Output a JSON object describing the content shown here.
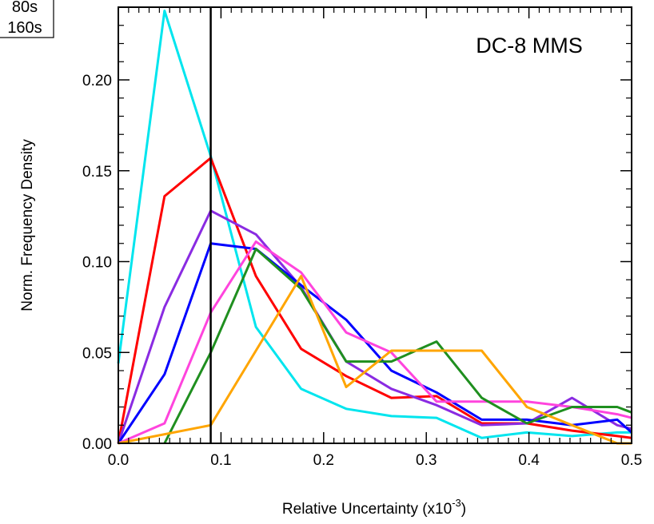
{
  "legend_box": {
    "items": [
      "80s",
      "160s"
    ]
  },
  "chart_data": {
    "type": "line",
    "title": "DC-8 MMS",
    "xlabel": "Relative Uncertainty (x10",
    "xlabel_exponent": "-3",
    "xlabel_close": ")",
    "ylabel": "Norm. Frequency Density",
    "xlim": [
      0,
      0.5
    ],
    "ylim": [
      0,
      0.24
    ],
    "xticks": [
      "0.0",
      "0.1",
      "0.2",
      "0.3",
      "0.4",
      "0.5"
    ],
    "yticks": [
      "0.00",
      "0.05",
      "0.10",
      "0.15",
      "0.20"
    ],
    "vline_x": 0.09,
    "series": [
      {
        "color": "#00e5ee",
        "x": [
          0,
          0.045,
          0.09,
          0.134,
          0.178,
          0.222,
          0.266,
          0.31,
          0.354,
          0.398,
          0.442,
          0.486,
          0.5
        ],
        "y": [
          0.044,
          0.238,
          0.158,
          0.064,
          0.03,
          0.019,
          0.015,
          0.014,
          0.003,
          0.006,
          0.004,
          0.006,
          0.006
        ]
      },
      {
        "color": "#ff0000",
        "x": [
          0,
          0.045,
          0.09,
          0.134,
          0.178,
          0.222,
          0.266,
          0.31,
          0.354,
          0.398,
          0.442,
          0.486,
          0.5
        ],
        "y": [
          0,
          0.136,
          0.157,
          0.092,
          0.052,
          0.037,
          0.025,
          0.026,
          0.011,
          0.011,
          0.007,
          0.004,
          0.003
        ]
      },
      {
        "color": "#8a2be2",
        "x": [
          0,
          0.045,
          0.09,
          0.134,
          0.178,
          0.222,
          0.266,
          0.31,
          0.354,
          0.398,
          0.442,
          0.486,
          0.5
        ],
        "y": [
          0,
          0.075,
          0.128,
          0.115,
          0.086,
          0.045,
          0.03,
          0.021,
          0.01,
          0.011,
          0.025,
          0.01,
          0.008
        ]
      },
      {
        "color": "#0000ff",
        "x": [
          0,
          0.045,
          0.09,
          0.134,
          0.178,
          0.222,
          0.266,
          0.31,
          0.354,
          0.398,
          0.442,
          0.486,
          0.5
        ],
        "y": [
          0,
          0.038,
          0.11,
          0.107,
          0.087,
          0.068,
          0.04,
          0.028,
          0.013,
          0.013,
          0.01,
          0.013,
          0.006
        ]
      },
      {
        "color": "#ff44dd",
        "x": [
          0,
          0.045,
          0.09,
          0.134,
          0.178,
          0.222,
          0.266,
          0.31,
          0.354,
          0.398,
          0.442,
          0.486,
          0.5
        ],
        "y": [
          0,
          0.011,
          0.072,
          0.111,
          0.094,
          0.061,
          0.05,
          0.023,
          0.023,
          0.023,
          0.02,
          0.016,
          0.014
        ]
      },
      {
        "color": "#1f8f1f",
        "x": [
          0.045,
          0.09,
          0.134,
          0.178,
          0.222,
          0.266,
          0.31,
          0.354,
          0.398,
          0.442,
          0.486,
          0.5
        ],
        "y": [
          0,
          0.05,
          0.107,
          0.085,
          0.045,
          0.045,
          0.056,
          0.025,
          0.011,
          0.02,
          0.02,
          0.017
        ]
      },
      {
        "color": "#ffa500",
        "x": [
          0,
          0.09,
          0.134,
          0.178,
          0.222,
          0.266,
          0.31,
          0.354,
          0.398,
          0.442,
          0.486,
          0.5
        ],
        "y": [
          0,
          0.01,
          0.051,
          0.092,
          0.031,
          0.051,
          0.051,
          0.051,
          0.02,
          0.01,
          0,
          0
        ]
      }
    ]
  }
}
